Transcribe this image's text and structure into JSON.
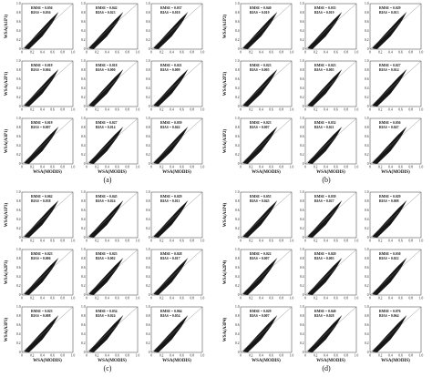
{
  "ticks": [
    "0",
    "0.2",
    "0.4",
    "0.6",
    "0.8",
    "1.0"
  ],
  "x_label": "WSA(MODIS)",
  "panels": [
    {
      "caption": "(a)",
      "y_labels": [
        "WSA(A1P1)",
        "WSA(A2P1)",
        "WSA(A3P1)"
      ],
      "plots": [
        [
          {
            "rmse": "RMSE = 0.056",
            "bias": "BIAS = 0.036"
          },
          {
            "rmse": "RMSE = 0.042",
            "bias": "BIAS = 0.023"
          },
          {
            "rmse": "RMSE = 0.037",
            "bias": "BIAS = 0.018"
          }
        ],
        [
          {
            "rmse": "RMSE = 0.019",
            "bias": "BIAS = 0.004"
          },
          {
            "rmse": "RMSE = 0.018",
            "bias": "BIAS = 0.000"
          },
          {
            "rmse": "RMSE = 0.021",
            "bias": "BIAS = 0.009"
          }
        ],
        [
          {
            "rmse": "RMSE = 0.019",
            "bias": "BIAS = 0.007"
          },
          {
            "rmse": "RMSE = 0.027",
            "bias": "BIAS = 0.014"
          },
          {
            "rmse": "RMSE = 0.059",
            "bias": "BIAS = 0.042"
          }
        ]
      ]
    },
    {
      "caption": "(b)",
      "y_labels": [
        "WSA(A1P2)",
        "WSA(A2P2)",
        "WSA(A3P2)"
      ],
      "plots": [
        [
          {
            "rmse": "RMSE = 0.040",
            "bias": "BIAS = 0.019"
          },
          {
            "rmse": "RMSE = 0.035",
            "bias": "BIAS = 0.019"
          },
          {
            "rmse": "RMSE = 0.029",
            "bias": "BIAS = 0.013"
          }
        ],
        [
          {
            "rmse": "RMSE = 0.023",
            "bias": "BIAS = 0.005"
          },
          {
            "rmse": "RMSE = 0.023",
            "bias": "BIAS = 0.005"
          },
          {
            "rmse": "RMSE = 0.027",
            "bias": "BIAS = 0.014"
          }
        ],
        [
          {
            "rmse": "RMSE = 0.023",
            "bias": "BIAS = 0.007"
          },
          {
            "rmse": "RMSE = 0.032",
            "bias": "BIAS = 0.021"
          },
          {
            "rmse": "RMSE = 0.056",
            "bias": "BIAS = 0.047"
          }
        ]
      ]
    },
    {
      "caption": "(c)",
      "y_labels": [
        "WSA(A1P3)",
        "WSA(A2P3)",
        "WSA(A3P3)"
      ],
      "plots": [
        [
          {
            "rmse": "RMSE = 0.062",
            "bias": "BIAS = 0.038"
          },
          {
            "rmse": "RMSE = 0.045",
            "bias": "BIAS = 0.024"
          },
          {
            "rmse": "RMSE = 0.029",
            "bias": "BIAS = 0.011"
          }
        ],
        [
          {
            "rmse": "RMSE = 0.023",
            "bias": "BIAS = 0.006"
          },
          {
            "rmse": "RMSE = 0.023",
            "bias": "BIAS = 0.002"
          },
          {
            "rmse": "RMSE = 0.028",
            "bias": "BIAS = 0.017"
          }
        ],
        [
          {
            "rmse": "RMSE = 0.023",
            "bias": "BIAS = 0.008"
          },
          {
            "rmse": "RMSE = 0.034",
            "bias": "BIAS = 0.024"
          },
          {
            "rmse": "RMSE = 0.064",
            "bias": "BIAS = 0.054"
          }
        ]
      ]
    },
    {
      "caption": "(d)",
      "y_labels": [
        "WSA(A1P4)",
        "WSA(A2P4)",
        "WSA(A3P4)"
      ],
      "plots": [
        [
          {
            "rmse": "RMSE = 0.055",
            "bias": "BIAS = 0.045"
          },
          {
            "rmse": "RMSE = 0.039",
            "bias": "BIAS = 0.027"
          },
          {
            "rmse": "RMSE = 0.029",
            "bias": "BIAS = 0.008"
          }
        ],
        [
          {
            "rmse": "RMSE = 0.022",
            "bias": "BIAS = 0.007"
          },
          {
            "rmse": "RMSE = 0.020",
            "bias": "BIAS = 0.003"
          },
          {
            "rmse": "RMSE = 0.030",
            "bias": "BIAS = 0.022"
          }
        ],
        [
          {
            "rmse": "RMSE = 0.029",
            "bias": "BIAS = 0.007"
          },
          {
            "rmse": "RMSE = 0.040",
            "bias": "BIAS = 0.028"
          },
          {
            "rmse": "RMSE = 0.076",
            "bias": "BIAS = 0.064"
          }
        ]
      ]
    }
  ]
}
